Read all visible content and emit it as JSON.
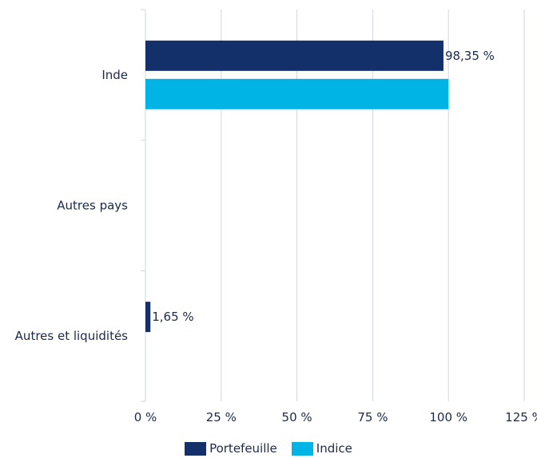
{
  "chart_data": {
    "type": "bar",
    "orientation": "horizontal",
    "categories": [
      "Inde",
      "Autres pays",
      "Autres et liquidités"
    ],
    "series": [
      {
        "name": "Portefeuille",
        "color": "#13306b",
        "values": [
          98.35,
          0,
          1.65
        ],
        "labels": [
          "98,35 %",
          "",
          "1,65 %"
        ]
      },
      {
        "name": "Indice",
        "color": "#00b4e6",
        "values": [
          100,
          0,
          0
        ],
        "labels": [
          "",
          "",
          ""
        ]
      }
    ],
    "x_ticks": [
      "0 %",
      "25 %",
      "50 %",
      "75 %",
      "100 %",
      "125 %"
    ],
    "xlim": [
      0,
      125
    ],
    "grid": true,
    "legend_position": "bottom"
  }
}
